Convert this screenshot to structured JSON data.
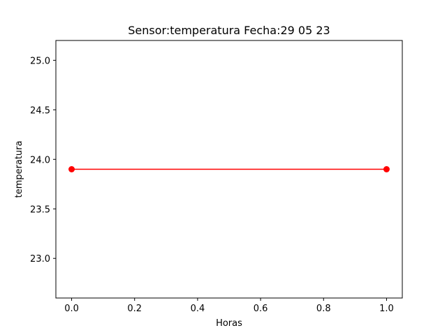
{
  "chart_data": {
    "type": "line",
    "title": "Sensor:temperatura Fecha:29 05 23",
    "xlabel": "Horas",
    "ylabel": "temperatura",
    "xlim": [
      -0.05,
      1.05
    ],
    "ylim": [
      22.6,
      25.2
    ],
    "xticks": [
      0.0,
      0.2,
      0.4,
      0.6,
      0.8,
      1.0
    ],
    "xtick_labels": [
      "0.0",
      "0.2",
      "0.4",
      "0.6",
      "0.8",
      "1.0"
    ],
    "yticks": [
      23.0,
      23.5,
      24.0,
      24.5,
      25.0
    ],
    "ytick_labels": [
      "23.0",
      "23.5",
      "24.0",
      "24.5",
      "25.0"
    ],
    "grid": false,
    "series": [
      {
        "x": [
          0,
          1
        ],
        "values": [
          23.9,
          23.9
        ],
        "color": "#ff0000",
        "marker": "circle"
      }
    ]
  }
}
